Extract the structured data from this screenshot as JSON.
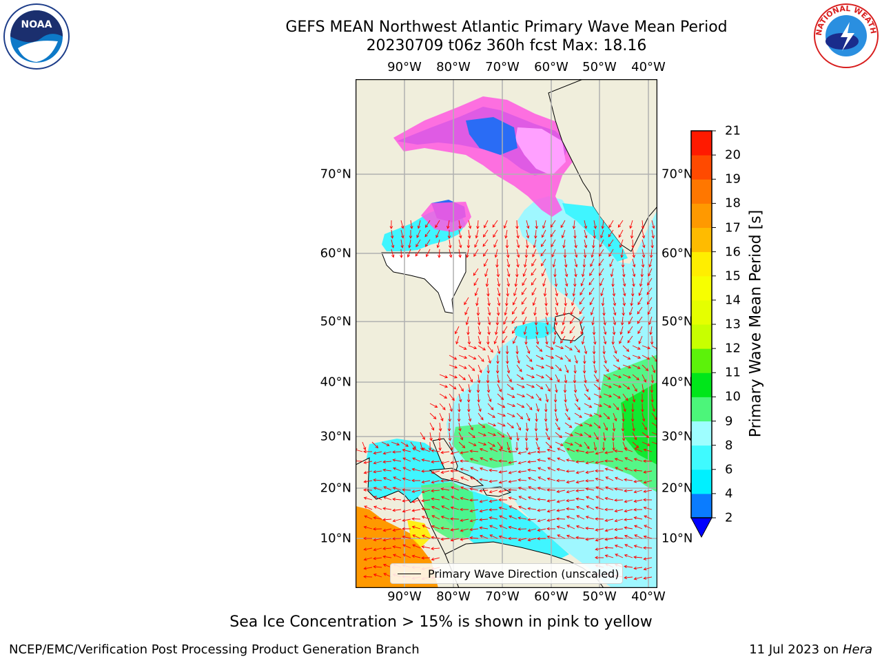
{
  "title_line1": "GEFS MEAN Northwest Atlantic Primary Wave Mean Period",
  "title_line2": "20230709 t06z 360h fcst   Max: 18.16",
  "lon_labels": [
    "90°W",
    "80°W",
    "70°W",
    "60°W",
    "50°W",
    "40°W"
  ],
  "lat_labels": [
    "70°N",
    "60°N",
    "50°N",
    "40°N",
    "30°N",
    "20°N",
    "10°N"
  ],
  "colorbar": {
    "label": "Primary Wave Mean Period [s]",
    "ticks": [
      "2",
      "4",
      "6",
      "8",
      "9",
      "10",
      "11",
      "12",
      "13",
      "14",
      "15",
      "16",
      "17",
      "18",
      "19",
      "20",
      "21"
    ],
    "levels": [
      {
        "from": 2,
        "to": 4,
        "color": "#0a7cff"
      },
      {
        "from": 4,
        "to": 6,
        "color": "#00f0ff"
      },
      {
        "from": 6,
        "to": 8,
        "color": "#3ffaff"
      },
      {
        "from": 8,
        "to": 9,
        "color": "#9efeff"
      },
      {
        "from": 9,
        "to": 10,
        "color": "#4cf57a"
      },
      {
        "from": 10,
        "to": 11,
        "color": "#00e61a"
      },
      {
        "from": 11,
        "to": 12,
        "color": "#5cf20a"
      },
      {
        "from": 12,
        "to": 13,
        "color": "#c8ff00"
      },
      {
        "from": 13,
        "to": 14,
        "color": "#e5ff00"
      },
      {
        "from": 14,
        "to": 15,
        "color": "#f7ff00"
      },
      {
        "from": 15,
        "to": 16,
        "color": "#ffee00"
      },
      {
        "from": 16,
        "to": 17,
        "color": "#ffbb00"
      },
      {
        "from": 17,
        "to": 18,
        "color": "#ff9900"
      },
      {
        "from": 18,
        "to": 19,
        "color": "#ff7700"
      },
      {
        "from": 19,
        "to": 20,
        "color": "#ff4a00"
      },
      {
        "from": 20,
        "to": 21,
        "color": "#ff1a00"
      }
    ],
    "extend_color": "#0000ff"
  },
  "legend_label": "Primary Wave Direction (unscaled)",
  "footnote": "Sea Ice Concentration > 15% is shown in pink to yellow",
  "credit": "NCEP/EMC/Verification Post Processing Product Generation Branch",
  "date_prefix": "11 Jul 2023 on",
  "machine": "Hera",
  "logo_left_text": "NOAA",
  "logo_right_text": "NATIONAL WEATHER SERVICE",
  "colors": {
    "land": "#f0eedc",
    "ocean_light": "#9ff7ff",
    "ocean": "#40f5ff",
    "arrows": "#ff0000",
    "grid": "#b0b0b0"
  }
}
